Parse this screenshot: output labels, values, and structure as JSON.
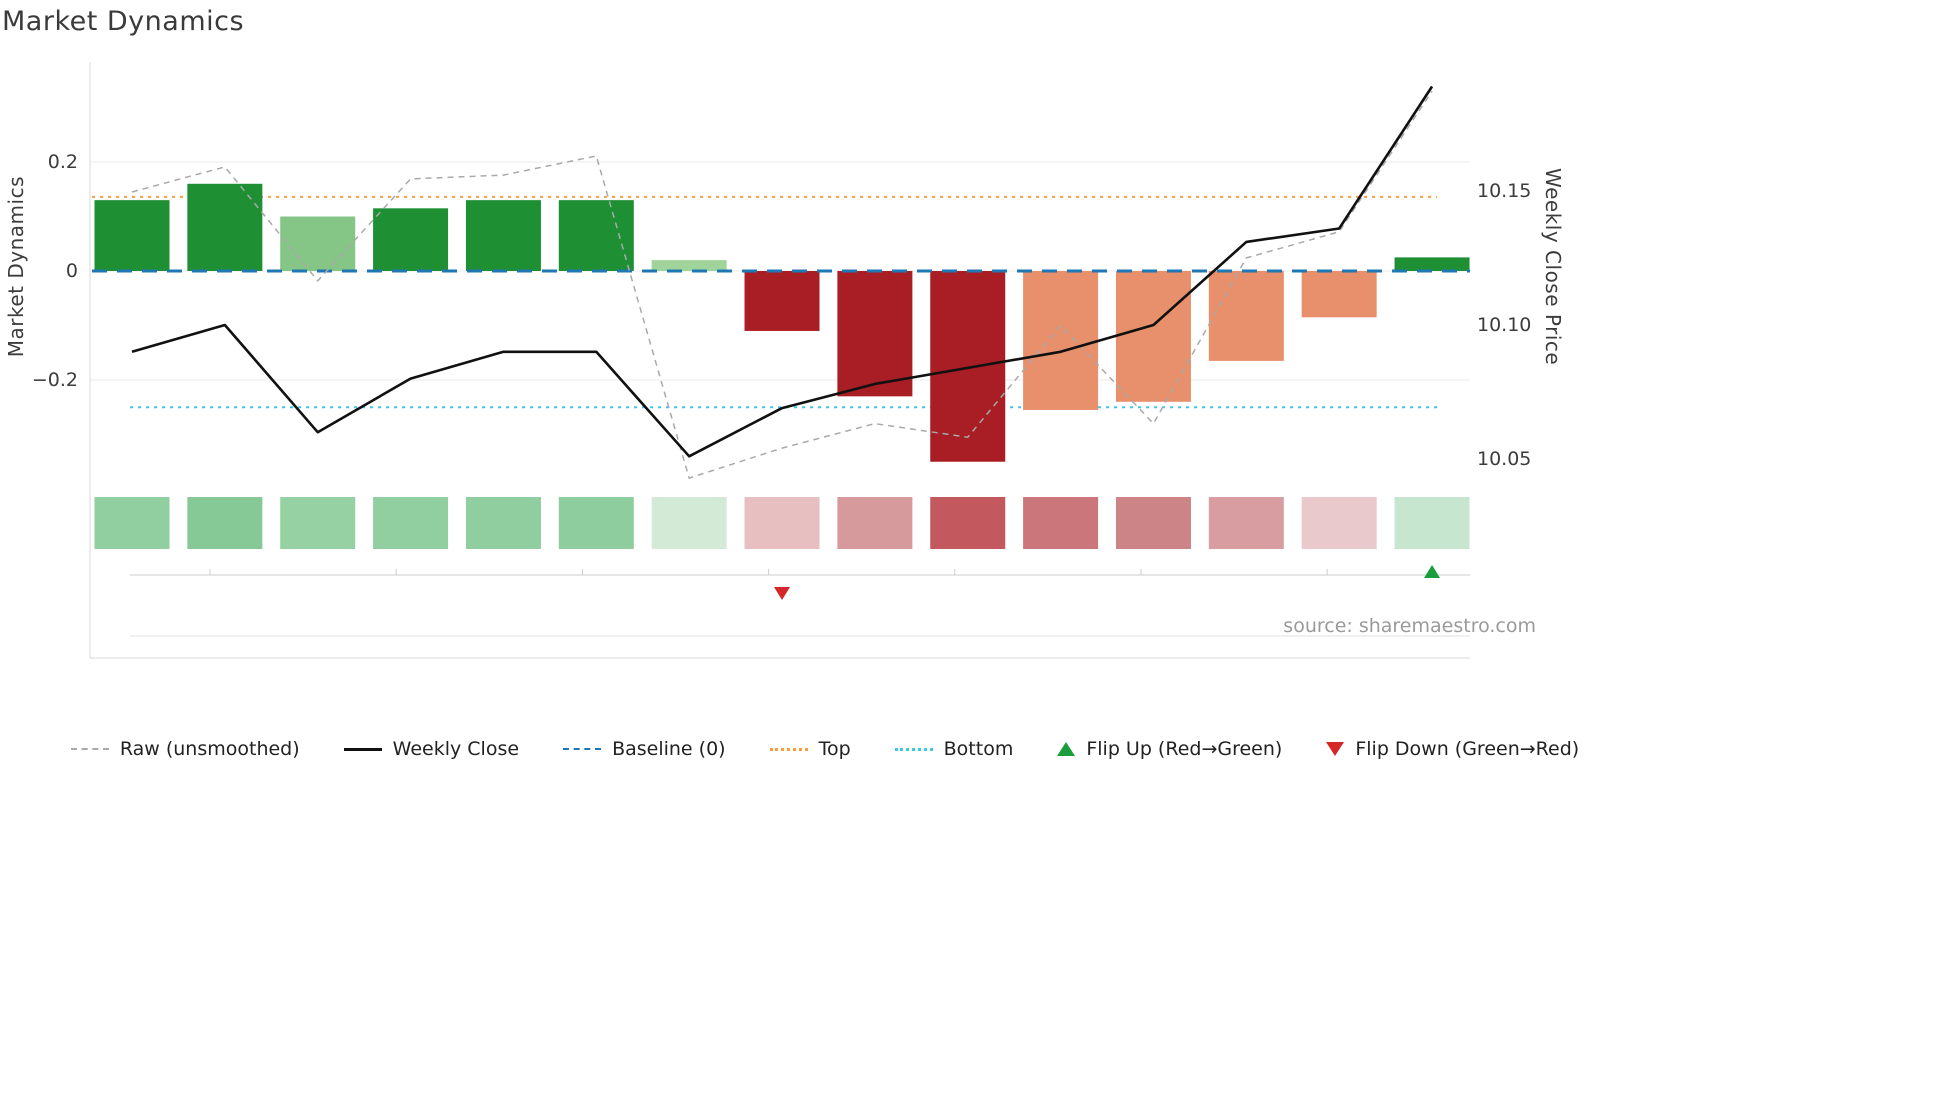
{
  "title": "Market Dynamics",
  "source": "source: sharemaestro.com",
  "axes": {
    "left_label": "Market Dynamics",
    "right_label": "Weekly Close Price",
    "left_ticks": [
      "0.2",
      "0",
      "−0.2"
    ],
    "right_ticks": [
      "10.15",
      "10.10",
      "10.05"
    ]
  },
  "colors": {
    "baseline": "#1f77b4",
    "top": "#f59d40",
    "bottom": "#3cc9e8",
    "raw": "#a9a9a9",
    "weekly_close": "#111111",
    "flip_up": "#1a9e3c",
    "flip_down": "#d62728",
    "grid": "#ebebeb",
    "spine": "#d9d9d9",
    "timeline": "#cccccc"
  },
  "legend": [
    {
      "name": "raw",
      "label": "Raw (unsmoothed)",
      "type": "dashed-line",
      "color": "#a9a9a9"
    },
    {
      "name": "weekly-close",
      "label": "Weekly Close",
      "type": "solid-line",
      "color": "#111111"
    },
    {
      "name": "baseline",
      "label": "Baseline (0)",
      "type": "dashed-line",
      "color": "#1f77b4"
    },
    {
      "name": "top",
      "label": "Top",
      "type": "dotted-line",
      "color": "#f59d40"
    },
    {
      "name": "bottom",
      "label": "Bottom",
      "type": "dotted-line",
      "color": "#3cc9e8"
    },
    {
      "name": "flip-up",
      "label": "Flip Up (Red→Green)",
      "type": "triangle-up",
      "color": "#1a9e3c"
    },
    {
      "name": "flip-down",
      "label": "Flip Down (Green→Red)",
      "type": "triangle-down",
      "color": "#d62728"
    }
  ],
  "chart_data": {
    "type": "bar",
    "subtype": "bar + dual-axis line combo with heatmap strip and flip markers",
    "title": "Market Dynamics",
    "x_index": [
      1,
      2,
      3,
      4,
      5,
      6,
      7,
      8,
      9,
      10,
      11,
      12,
      13,
      14,
      15
    ],
    "bars": {
      "name": "Market Dynamics (smoothed)",
      "axis": "left",
      "values": [
        0.13,
        0.16,
        0.1,
        0.115,
        0.13,
        0.13,
        0.02,
        -0.11,
        -0.23,
        -0.35,
        -0.255,
        -0.24,
        -0.165,
        -0.085,
        0.025
      ],
      "colors": [
        "#1e8f33",
        "#1e8f33",
        "#85c585",
        "#1e8f33",
        "#1e8f33",
        "#1e8f33",
        "#9fd59a",
        "#a81e24",
        "#a81e24",
        "#a81e24",
        "#e8906c",
        "#e8906c",
        "#e8906c",
        "#e8906c",
        "#1e8f33"
      ]
    },
    "raw": {
      "name": "Raw (unsmoothed)",
      "axis": "left",
      "values": [
        0.145,
        0.191,
        -0.018,
        0.169,
        0.176,
        0.211,
        -0.38,
        -0.325,
        -0.28,
        -0.305,
        -0.1,
        -0.28,
        0.024,
        0.072,
        0.33
      ]
    },
    "weekly_close": {
      "name": "Weekly Close",
      "axis": "right",
      "values": [
        10.09,
        10.1,
        10.06,
        10.08,
        10.09,
        10.09,
        10.051,
        10.069,
        10.078,
        10.084,
        10.09,
        10.1,
        10.131,
        10.136,
        10.189
      ]
    },
    "baseline": 0,
    "top_threshold": 0.136,
    "bottom_threshold": -0.25,
    "heatmap_colors": [
      "#92cfa0",
      "#86c997",
      "#95d1a3",
      "#92cfa0",
      "#90cea0",
      "#8ecd9e",
      "#d2ead6",
      "#e7bfc1",
      "#d69a9c",
      "#c3595e",
      "#ca767a",
      "#cd8487",
      "#d79da0",
      "#e9c9cb",
      "#c6e6cf"
    ],
    "flip_markers": [
      {
        "x_index": 8,
        "direction": "down"
      },
      {
        "x_index": 15,
        "direction": "up"
      }
    ],
    "left_axis": {
      "label": "Market Dynamics",
      "ticks": [
        0.2,
        0,
        -0.2
      ],
      "range": [
        -0.39,
        0.39
      ]
    },
    "right_axis": {
      "label": "Weekly Close Price",
      "ticks": [
        10.15,
        10.1,
        10.05
      ]
    },
    "grid": "horizontal only",
    "legend_position": "bottom center"
  }
}
